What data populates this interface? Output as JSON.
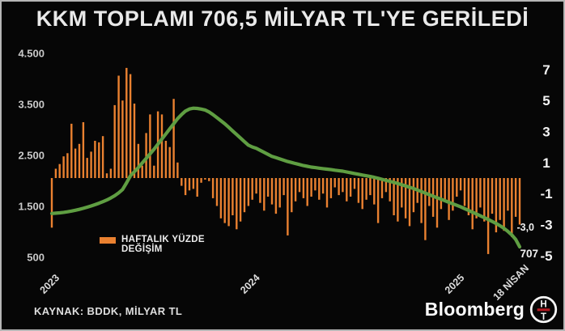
{
  "title": "KKM TOPLAMI 706,5 MİLYAR TL'YE GERİLEDİ",
  "source": "KAYNAK: BDDK, MİLYAR TL",
  "branding": {
    "wordmark": "Bloomberg",
    "badge_top": "H",
    "badge_bottom": "T"
  },
  "legend": {
    "label": "HAFTALIK YÜZDE DEĞİŞİM",
    "swatch_color": "#ea8130"
  },
  "colors": {
    "background": "#060606",
    "bars": "#ea8130",
    "line": "#5f9e42",
    "title_text": "#e9e9e9",
    "badge_red": "#b11a21"
  },
  "chart_data": {
    "type": "combo",
    "x_unit": "week",
    "x_ticks": [
      {
        "label": "2023",
        "week": 0
      },
      {
        "label": "2024",
        "week": 51
      },
      {
        "label": "2025",
        "week": 103
      },
      {
        "label": "18 NİSAN",
        "week": 119
      }
    ],
    "left_axis": {
      "unit": "MİLYAR TL",
      "values": [
        4500,
        3500,
        2500,
        1500,
        500
      ],
      "labels": [
        "4.500",
        "3.500",
        "2.500",
        "1.500",
        "500"
      ]
    },
    "right_axis": {
      "unit": "%",
      "values": [
        7,
        5,
        3,
        1,
        -1,
        -3,
        -5
      ],
      "labels": [
        "7",
        "5",
        "3",
        "1",
        "-1",
        "-3",
        "-5"
      ]
    },
    "legend_position": "lower-left",
    "grid": false,
    "series": [
      {
        "name": "KKM TOPLAMI, MİLYAR TL",
        "type": "line",
        "axis": "left",
        "color": "#5f9e42",
        "values": [
          1360,
          1366,
          1373,
          1382,
          1394,
          1408,
          1424,
          1442,
          1462,
          1484,
          1508,
          1534,
          1562,
          1592,
          1625,
          1665,
          1710,
          1765,
          1830,
          1960,
          2100,
          2180,
          2260,
          2350,
          2440,
          2530,
          2620,
          2720,
          2820,
          2920,
          3020,
          3120,
          3220,
          3300,
          3370,
          3410,
          3425,
          3420,
          3408,
          3390,
          3350,
          3300,
          3240,
          3180,
          3120,
          3050,
          2980,
          2910,
          2840,
          2770,
          2700,
          2665,
          2640,
          2600,
          2560,
          2520,
          2480,
          2455,
          2430,
          2405,
          2380,
          2360,
          2340,
          2320,
          2300,
          2285,
          2270,
          2260,
          2250,
          2240,
          2230,
          2220,
          2210,
          2200,
          2190,
          2175,
          2160,
          2145,
          2130,
          2115,
          2100,
          2085,
          2070,
          2050,
          2030,
          2010,
          1990,
          1970,
          1950,
          1925,
          1900,
          1875,
          1850,
          1820,
          1790,
          1760,
          1730,
          1700,
          1670,
          1640,
          1610,
          1580,
          1550,
          1520,
          1490,
          1455,
          1420,
          1385,
          1350,
          1315,
          1280,
          1243,
          1205,
          1165,
          1120,
          1070,
          1010,
          940,
          850,
          707
        ]
      },
      {
        "name": "HAFTALIK YÜZDE DEĞİŞİM",
        "type": "bar",
        "axis": "right",
        "color": "#ea8130",
        "values": [
          -3.2,
          0.6,
          0.9,
          1.4,
          1.6,
          3.5,
          1.9,
          2.2,
          3.6,
          1.3,
          1.7,
          2.4,
          2.3,
          2.7,
          0.3,
          0.6,
          4.7,
          6.6,
          5.0,
          7.1,
          6.7,
          4.8,
          2.2,
          0.8,
          2.9,
          4.1,
          0.8,
          4.3,
          4.1,
          2.4,
          2.0,
          5.1,
          1.0,
          -0.5,
          -1.1,
          -0.8,
          -0.7,
          -1.2,
          -0.3,
          -0.1,
          -0.2,
          -1.3,
          -1.8,
          -2.6,
          -2.9,
          -3.1,
          -2.4,
          -3.3,
          -2.8,
          -2.2,
          -1.8,
          -1.4,
          -1.0,
          -1.6,
          -2.1,
          -1.2,
          -1.7,
          -2.3,
          -1.9,
          -1.1,
          -3.7,
          -2.2,
          -1.5,
          -0.9,
          -1.3,
          -1.8,
          -1.2,
          -0.8,
          -1.4,
          -1.0,
          -1.9,
          -1.3,
          -0.6,
          -1.1,
          -0.9,
          -1.5,
          -1.2,
          -0.7,
          -1.6,
          -2.0,
          -1.4,
          -1.1,
          -1.7,
          -2.9,
          -1.3,
          -0.9,
          -1.5,
          -2.4,
          -2.8,
          -1.9,
          -2.6,
          -3.1,
          -2.2,
          -1.6,
          -2.9,
          -4.0,
          -1.8,
          -2.5,
          -3.2,
          -2.0,
          -1.4,
          -2.7,
          -2.1,
          -1.2,
          -0.8,
          -1.8,
          -2.4,
          -3.3,
          -2.6,
          -1.9,
          -2.8,
          -4.9,
          -2.3,
          -3.5,
          -2.7,
          -3.4,
          -2.1,
          -3.8,
          -2.5,
          -3.0
        ]
      }
    ],
    "annotations": {
      "last_bar_label": "-3,0",
      "last_line_label": "707"
    }
  }
}
